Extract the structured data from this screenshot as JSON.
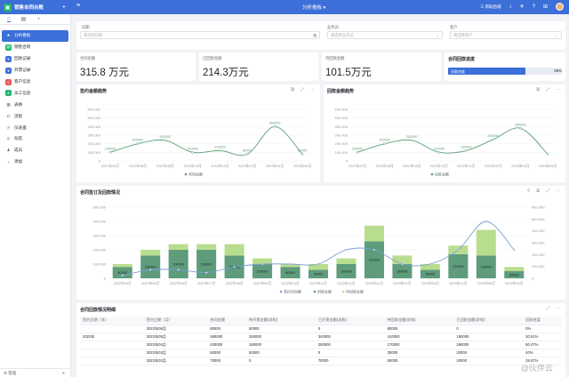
{
  "app": {
    "name": "销售合同台账",
    "page_title": "分析看板",
    "help_link": "帮助后端"
  },
  "sidebar": {
    "items": [
      {
        "label": "分析看板",
        "icon": "star-icon",
        "color": "#3c6fd8"
      },
      {
        "label": "销售合同",
        "icon": "contract-icon",
        "color": "#1fb56b"
      },
      {
        "label": "回款记录",
        "icon": "payment-icon",
        "color": "#3c6fd8"
      },
      {
        "label": "开票记录",
        "icon": "invoice-icon",
        "color": "#3c6fd8"
      },
      {
        "label": "客户信息",
        "icon": "customer-icon",
        "color": "#e8575a"
      },
      {
        "label": "员工信息",
        "icon": "staff-icon",
        "color": "#1fb56b"
      },
      {
        "label": "表格",
        "icon": "table-icon",
        "color": "#8f959e"
      },
      {
        "label": "流程",
        "icon": "flow-icon",
        "color": "#8f959e"
      },
      {
        "label": "仪表盘",
        "icon": "dashboard-icon",
        "color": "#8f959e"
      },
      {
        "label": "动态",
        "icon": "activity-icon",
        "color": "#8f959e"
      },
      {
        "label": "成员",
        "icon": "members-icon",
        "color": "#8f959e"
      },
      {
        "label": "添加",
        "icon": "plus-icon",
        "color": "#8f959e"
      }
    ],
    "footer": "管理"
  },
  "filters": [
    {
      "label": "日期",
      "placeholder": "请选择日期",
      "icon": "calendar-icon"
    },
    {
      "label": "业务员",
      "placeholder": "请选择业务员",
      "icon": "chevron-down-icon"
    },
    {
      "label": "客户",
      "placeholder": "请选择客户",
      "icon": "chevron-down-icon"
    }
  ],
  "kpis": [
    {
      "label": "合同金额",
      "value": "315.8 万元"
    },
    {
      "label": "已回款金额",
      "value": "214.3万元"
    },
    {
      "label": "待回款金额",
      "value": "101.5万元"
    }
  ],
  "progress": {
    "title": "合同回款进度",
    "bar_label": "回款进度",
    "value": 0.68,
    "pct_text": "68%"
  },
  "chart_data": [
    {
      "type": "line",
      "title": "签约金额趋势",
      "categories": [
        "2022年04月",
        "2022年06月",
        "2022年08月",
        "2022年10月",
        "2022年12月",
        "2023年02月",
        "2023年04月",
        "2023年06月"
      ],
      "series": [
        {
          "name": "合同金额",
          "values": [
            100000,
            200000,
            240000,
            100000,
            120000,
            80000,
            400000,
            80000
          ]
        }
      ],
      "data_labels": [
        "100000",
        "200000",
        "240000",
        "100000",
        "120000",
        "80000",
        "400000",
        "80000"
      ],
      "yticks": [
        "600,000",
        "500,000",
        "400,000",
        "300,000",
        "200,000",
        "100,000",
        "0"
      ],
      "ylim": [
        0,
        600000
      ]
    },
    {
      "type": "line",
      "title": "回款金额趋势",
      "categories": [
        "2022年04月",
        "2022年06月",
        "2022年08月",
        "2022年10月",
        "2022年12月",
        "2023年02月",
        "2023年04月",
        "2023年06月"
      ],
      "series": [
        {
          "name": "回款金额",
          "values": [
            100000,
            200000,
            240000,
            100000,
            120000,
            250000,
            380000,
            80000
          ]
        }
      ],
      "data_labels": [
        "100000",
        "200000",
        "240000",
        "100000",
        "120000",
        "250000",
        "380000"
      ],
      "yticks": [
        "600,000",
        "500,000",
        "400,000",
        "300,000",
        "200,000",
        "100,000",
        "0"
      ],
      "ylim": [
        0,
        600000
      ]
    },
    {
      "type": "bar",
      "title": "合同签订及回款情况",
      "categories": [
        "2022年04月",
        "2022年05月",
        "2022年06月",
        "2022年07月",
        "2022年08月",
        "2022年09月",
        "2022年10月",
        "2022年11月",
        "2022年12月",
        "2023年01月",
        "2023年02月",
        "2023年03月",
        "2023年04月",
        "2023年05月",
        "2023年06月"
      ],
      "series": [
        {
          "name": "签约合同额",
          "values": [
            20000,
            60000,
            60000,
            40000,
            80000,
            100000,
            100000,
            100000,
            200000,
            200000,
            100000,
            100000,
            200000,
            400000,
            200000
          ]
        },
        {
          "name": "回款金额",
          "values": [
            80000,
            160000,
            200000,
            200000,
            160000,
            100000,
            80000,
            60000,
            100000,
            260000,
            100000,
            60000,
            170000,
            160000,
            50000
          ]
        },
        {
          "name": "待回款金额",
          "values": [
            20000,
            40000,
            40000,
            40000,
            80000,
            40000,
            20000,
            40000,
            40000,
            110000,
            60000,
            40000,
            60000,
            180000,
            30000
          ]
        }
      ],
      "data_labels": [
        "80000",
        "160000",
        "200000",
        "200000",
        "160000",
        "100000",
        "80000",
        "60000",
        "100000",
        "110000",
        "100000",
        "60000",
        "170000",
        "180000",
        "50000"
      ],
      "left_yticks": [
        "500,000",
        "400,000",
        "300,000",
        "200,000",
        "100,000",
        "0"
      ],
      "right_yticks": [
        "600,000",
        "500,000",
        "400,000",
        "300,000",
        "200,000",
        "100,000",
        "0"
      ],
      "ylim": [
        0,
        500000
      ]
    }
  ],
  "table": {
    "title": "合同回款情况明细",
    "columns": [
      "签约日期（年）",
      "签约日期（月）",
      "合同金额",
      "待开票金额(求和)",
      "已开票金额(求和)",
      "待回款金额(求和)",
      "已回款金额(求和)",
      "回款进度"
    ],
    "year_label": "2023年",
    "rows": [
      [
        "2023年06月",
        "80000",
        "80000",
        "0",
        "80000",
        "0",
        "0%"
      ],
      [
        "2023年05月",
        "590000",
        "250000",
        "340000",
        "410000",
        "180000",
        "30.51%"
      ],
      [
        "2023年04月",
        "430000",
        "180000",
        "250000",
        "170000",
        "260000",
        "60.47%"
      ],
      [
        "2023年03月",
        "50000",
        "50000",
        "0",
        "30000",
        "20000",
        "40%"
      ],
      [
        "2023年02月",
        "70000",
        "0",
        "70000",
        "50000",
        "20000",
        "28.57%"
      ]
    ]
  },
  "watermark": "@伙伴云"
}
